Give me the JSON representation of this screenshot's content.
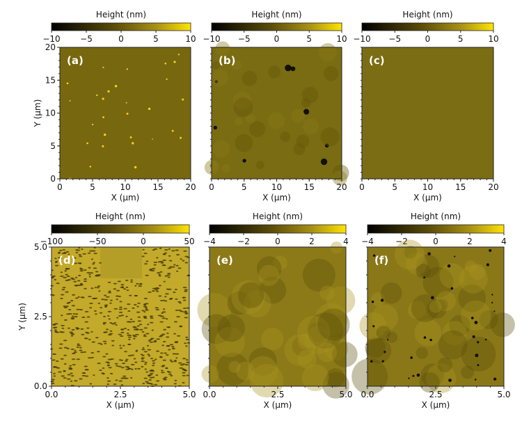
{
  "chart_data": [
    {
      "type": "heatmap",
      "panel_label": "(a)",
      "colorbar_label": "Height (nm)",
      "colorbar_range": [
        -10,
        10
      ],
      "colorbar_ticks": [
        "−10",
        "−5",
        "0",
        "5",
        "10"
      ],
      "xlabel": "X (µm)",
      "ylabel": "Y (µm)",
      "xlim": [
        0,
        20
      ],
      "ylim": [
        0,
        20
      ],
      "xticks": [
        "0",
        "5",
        "10",
        "15",
        "20"
      ],
      "yticks": [
        "0",
        "5",
        "10",
        "15",
        "20"
      ],
      "base_color": "#77670f",
      "texture": "fine bright specks"
    },
    {
      "type": "heatmap",
      "panel_label": "(b)",
      "colorbar_label": "Height (nm)",
      "colorbar_range": [
        -10,
        10
      ],
      "colorbar_ticks": [
        "−10",
        "−5",
        "0",
        "5",
        "10"
      ],
      "xlabel": "X (µm)",
      "ylabel": "",
      "xlim": [
        0,
        20
      ],
      "ylim": [
        0,
        20
      ],
      "xticks": [
        "0",
        "5",
        "10",
        "15",
        "20"
      ],
      "yticks": [],
      "base_color": "#7a6c12",
      "texture": "dark pits"
    },
    {
      "type": "heatmap",
      "panel_label": "(c)",
      "colorbar_label": "Height (nm)",
      "colorbar_range": [
        -10,
        10
      ],
      "colorbar_ticks": [
        "−10",
        "−5",
        "0",
        "5",
        "10"
      ],
      "xlabel": "X (µm)",
      "ylabel": "",
      "xlim": [
        0,
        20
      ],
      "ylim": [
        0,
        20
      ],
      "xticks": [
        "0",
        "5",
        "10",
        "15",
        "20"
      ],
      "yticks": [],
      "base_color": "#7b6d13",
      "texture": "smooth"
    },
    {
      "type": "heatmap",
      "panel_label": "(d)",
      "colorbar_label": "Height (nm)",
      "colorbar_range": [
        -100,
        50
      ],
      "colorbar_ticks": [
        "−100",
        "−50",
        "0",
        "50"
      ],
      "xlabel": "X (µm)",
      "ylabel": "Y (µm)",
      "xlim": [
        0,
        5
      ],
      "ylim": [
        0,
        5
      ],
      "xticks": [
        "0.0",
        "2.5",
        "5.0"
      ],
      "yticks": [
        "0.0",
        "2.5",
        "5.0"
      ],
      "base_color": "#c4aa2a",
      "texture": "dense dark grains"
    },
    {
      "type": "heatmap",
      "panel_label": "(e)",
      "colorbar_label": "Height (nm)",
      "colorbar_range": [
        -4,
        4
      ],
      "colorbar_ticks": [
        "−4",
        "−2",
        "0",
        "2",
        "4"
      ],
      "xlabel": "X (µm)",
      "ylabel": "",
      "xlim": [
        0,
        5
      ],
      "ylim": [
        0,
        5
      ],
      "xticks": [
        "0.0",
        "2.5",
        "5.0"
      ],
      "yticks": [],
      "base_color": "#8c7a18",
      "texture": "mottled"
    },
    {
      "type": "heatmap",
      "panel_label": "(f)",
      "colorbar_label": "Height (nm)",
      "colorbar_range": [
        -4,
        4
      ],
      "colorbar_ticks": [
        "−4",
        "−2",
        "0",
        "2",
        "4"
      ],
      "xlabel": "X (µm)",
      "ylabel": "",
      "xlim": [
        0,
        5
      ],
      "ylim": [
        0,
        5
      ],
      "xticks": [
        "0.0",
        "2.5",
        "5.0"
      ],
      "yticks": [],
      "base_color": "#8a7818",
      "texture": "mottled with dark pits"
    }
  ]
}
